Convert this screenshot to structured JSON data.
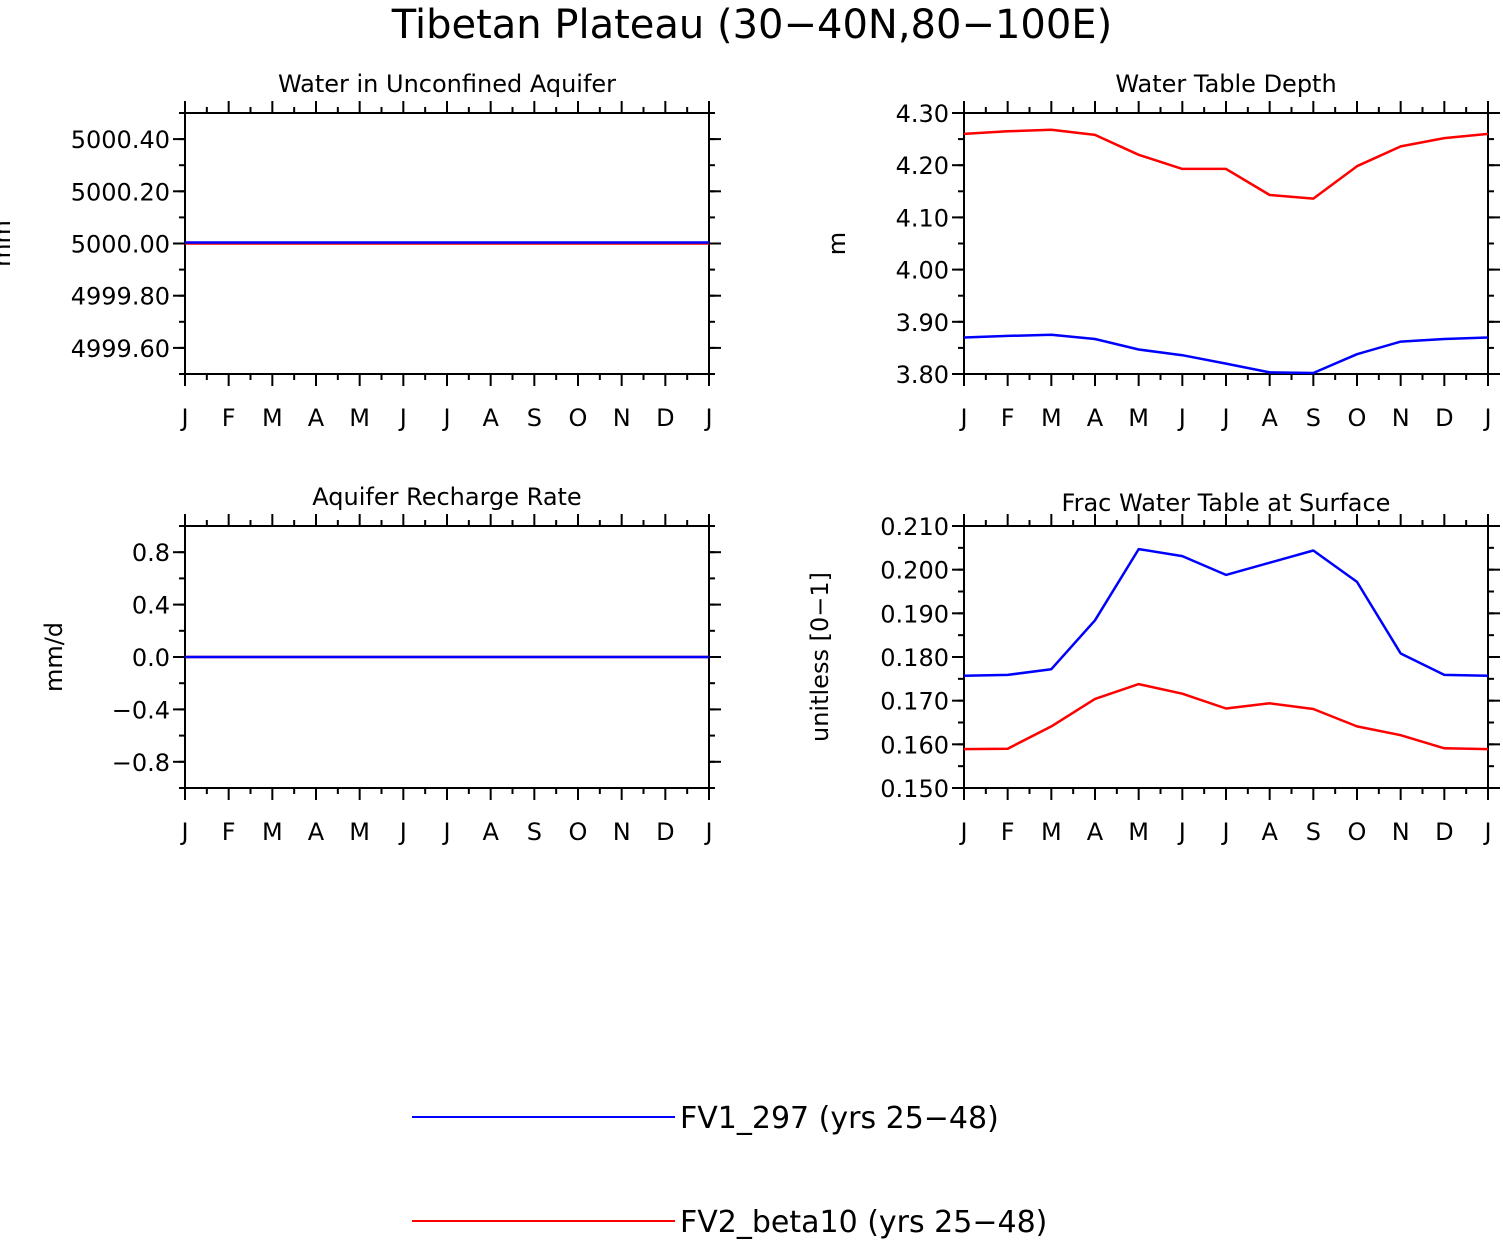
{
  "figure_title": "Tibetan Plateau (30−40N,80−100E)",
  "colors": {
    "series1": "#0000ff",
    "series2": "#ff0000",
    "axis": "#000000"
  },
  "legend": [
    {
      "label": "FV1_297 (yrs 25−48)",
      "color": "#0000ff"
    },
    {
      "label": "FV2_beta10 (yrs 25−48)",
      "color": "#ff0000"
    }
  ],
  "chart_data": [
    {
      "type": "line",
      "title": "Water in Unconfined Aquifer",
      "ylabel": "mm",
      "xlabel": "",
      "categories": [
        "J",
        "F",
        "M",
        "A",
        "M",
        "J",
        "J",
        "A",
        "S",
        "O",
        "N",
        "D",
        "J"
      ],
      "ylim": [
        4999.5,
        5000.5
      ],
      "yticks": [
        4999.6,
        4999.8,
        5000.0,
        5000.2,
        5000.4
      ],
      "ytick_labels": [
        "4999.60",
        "4999.80",
        "5000.00",
        "5000.20",
        "5000.40"
      ],
      "yminor_step": 0.1,
      "series": [
        {
          "name": "FV2_beta10 (yrs 25−48)",
          "color": "#ff0000",
          "values": [
            5000.0,
            5000.0,
            5000.0,
            5000.0,
            5000.0,
            5000.0,
            5000.0,
            5000.0,
            5000.0,
            5000.0,
            5000.0,
            5000.0,
            5000.0
          ]
        },
        {
          "name": "FV1_297 (yrs 25−48)",
          "color": "#0000ff",
          "values": [
            5000.004,
            5000.004,
            5000.004,
            5000.004,
            5000.004,
            5000.004,
            5000.004,
            5000.004,
            5000.004,
            5000.004,
            5000.004,
            5000.004,
            5000.004
          ]
        }
      ]
    },
    {
      "type": "line",
      "title": "Water Table Depth",
      "ylabel": "m",
      "xlabel": "",
      "categories": [
        "J",
        "F",
        "M",
        "A",
        "M",
        "J",
        "J",
        "A",
        "S",
        "O",
        "N",
        "D",
        "J"
      ],
      "ylim": [
        3.8,
        4.3
      ],
      "yticks": [
        3.8,
        3.9,
        4.0,
        4.1,
        4.2,
        4.3
      ],
      "ytick_labels": [
        "3.80",
        "3.90",
        "4.00",
        "4.10",
        "4.20",
        "4.30"
      ],
      "yminor_step": 0.05,
      "series": [
        {
          "name": "FV1_297 (yrs 25−48)",
          "color": "#0000ff",
          "values": [
            3.87,
            3.873,
            3.875,
            3.867,
            3.847,
            3.836,
            3.82,
            3.803,
            3.802,
            3.838,
            3.862,
            3.867,
            3.87
          ]
        },
        {
          "name": "FV2_beta10 (yrs 25−48)",
          "color": "#ff0000",
          "values": [
            4.26,
            4.265,
            4.268,
            4.258,
            4.22,
            4.193,
            4.193,
            4.143,
            4.136,
            4.198,
            4.236,
            4.252,
            4.26
          ]
        }
      ]
    },
    {
      "type": "line",
      "title": "Aquifer Recharge Rate",
      "ylabel": "mm/d",
      "xlabel": "",
      "categories": [
        "J",
        "F",
        "M",
        "A",
        "M",
        "J",
        "J",
        "A",
        "S",
        "O",
        "N",
        "D",
        "J"
      ],
      "ylim": [
        -1.0,
        1.0
      ],
      "yticks": [
        -0.8,
        -0.4,
        0.0,
        0.4,
        0.8
      ],
      "ytick_labels": [
        "−0.8",
        "−0.4",
        "0.0",
        "0.4",
        "0.8"
      ],
      "yminor_step": 0.2,
      "series": [
        {
          "name": "FV2_beta10 (yrs 25−48)",
          "color": "#ff0000",
          "values": [
            0,
            0,
            0,
            0,
            0,
            0,
            0,
            0,
            0,
            0,
            0,
            0,
            0
          ]
        },
        {
          "name": "FV1_297 (yrs 25−48)",
          "color": "#0000ff",
          "values": [
            0,
            0,
            0,
            0,
            0,
            0,
            0,
            0,
            0,
            0,
            0,
            0,
            0
          ]
        }
      ]
    },
    {
      "type": "line",
      "title": "Frac Water Table at Surface",
      "ylabel": "unitless [0−1]",
      "xlabel": "",
      "categories": [
        "J",
        "F",
        "M",
        "A",
        "M",
        "J",
        "J",
        "A",
        "S",
        "O",
        "N",
        "D",
        "J"
      ],
      "ylim": [
        0.15,
        0.21
      ],
      "yticks": [
        0.15,
        0.16,
        0.17,
        0.18,
        0.19,
        0.2,
        0.21
      ],
      "ytick_labels": [
        "0.150",
        "0.160",
        "0.170",
        "0.180",
        "0.190",
        "0.200",
        "0.210"
      ],
      "yminor_step": 0.005,
      "series": [
        {
          "name": "FV1_297 (yrs 25−48)",
          "color": "#0000ff",
          "values": [
            0.1757,
            0.1759,
            0.1772,
            0.1884,
            0.2047,
            0.2031,
            0.1988,
            0.2016,
            0.2044,
            0.1972,
            0.1808,
            0.1759,
            0.1757
          ]
        },
        {
          "name": "FV2_beta10 (yrs 25−48)",
          "color": "#ff0000",
          "values": [
            0.1589,
            0.159,
            0.1641,
            0.1704,
            0.1738,
            0.1716,
            0.1682,
            0.1694,
            0.1681,
            0.1641,
            0.1621,
            0.1591,
            0.1589
          ]
        }
      ]
    }
  ]
}
